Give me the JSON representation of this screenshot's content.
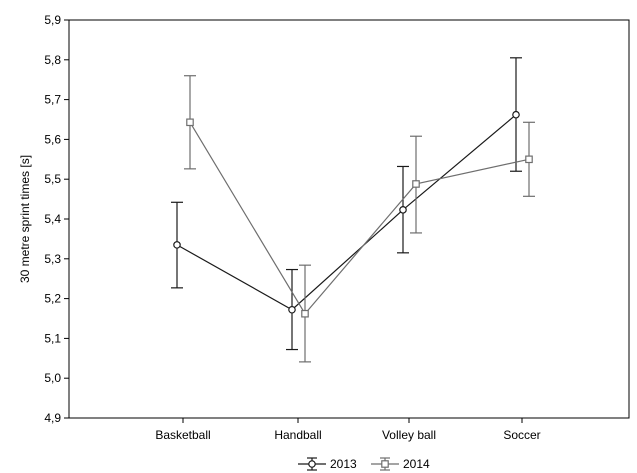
{
  "chart_data": {
    "type": "line",
    "ylabel": "30 metre sprint times [s]",
    "xlabel": "",
    "categories": [
      "Basketball",
      "Handball",
      "Volley ball",
      "Soccer"
    ],
    "ylim": [
      4.9,
      5.9
    ],
    "yticks": [
      "4,9",
      "5,0",
      "5,1",
      "5,2",
      "5,3",
      "5,4",
      "5,5",
      "5,6",
      "5,7",
      "5,8",
      "5,9"
    ],
    "legend_position": "bottom",
    "grid": false,
    "series": [
      {
        "name": "2013",
        "color": "#1a1a1a",
        "marker": "circle",
        "values": [
          5.335,
          5.172,
          5.423,
          5.662
        ],
        "error_low": [
          5.227,
          5.072,
          5.315,
          5.52
        ],
        "error_high": [
          5.442,
          5.273,
          5.532,
          5.805
        ]
      },
      {
        "name": "2014",
        "color": "#6e6e6e",
        "marker": "square",
        "values": [
          5.643,
          5.162,
          5.488,
          5.55
        ],
        "error_low": [
          5.526,
          5.041,
          5.365,
          5.457
        ],
        "error_high": [
          5.76,
          5.284,
          5.608,
          5.643
        ]
      }
    ]
  }
}
